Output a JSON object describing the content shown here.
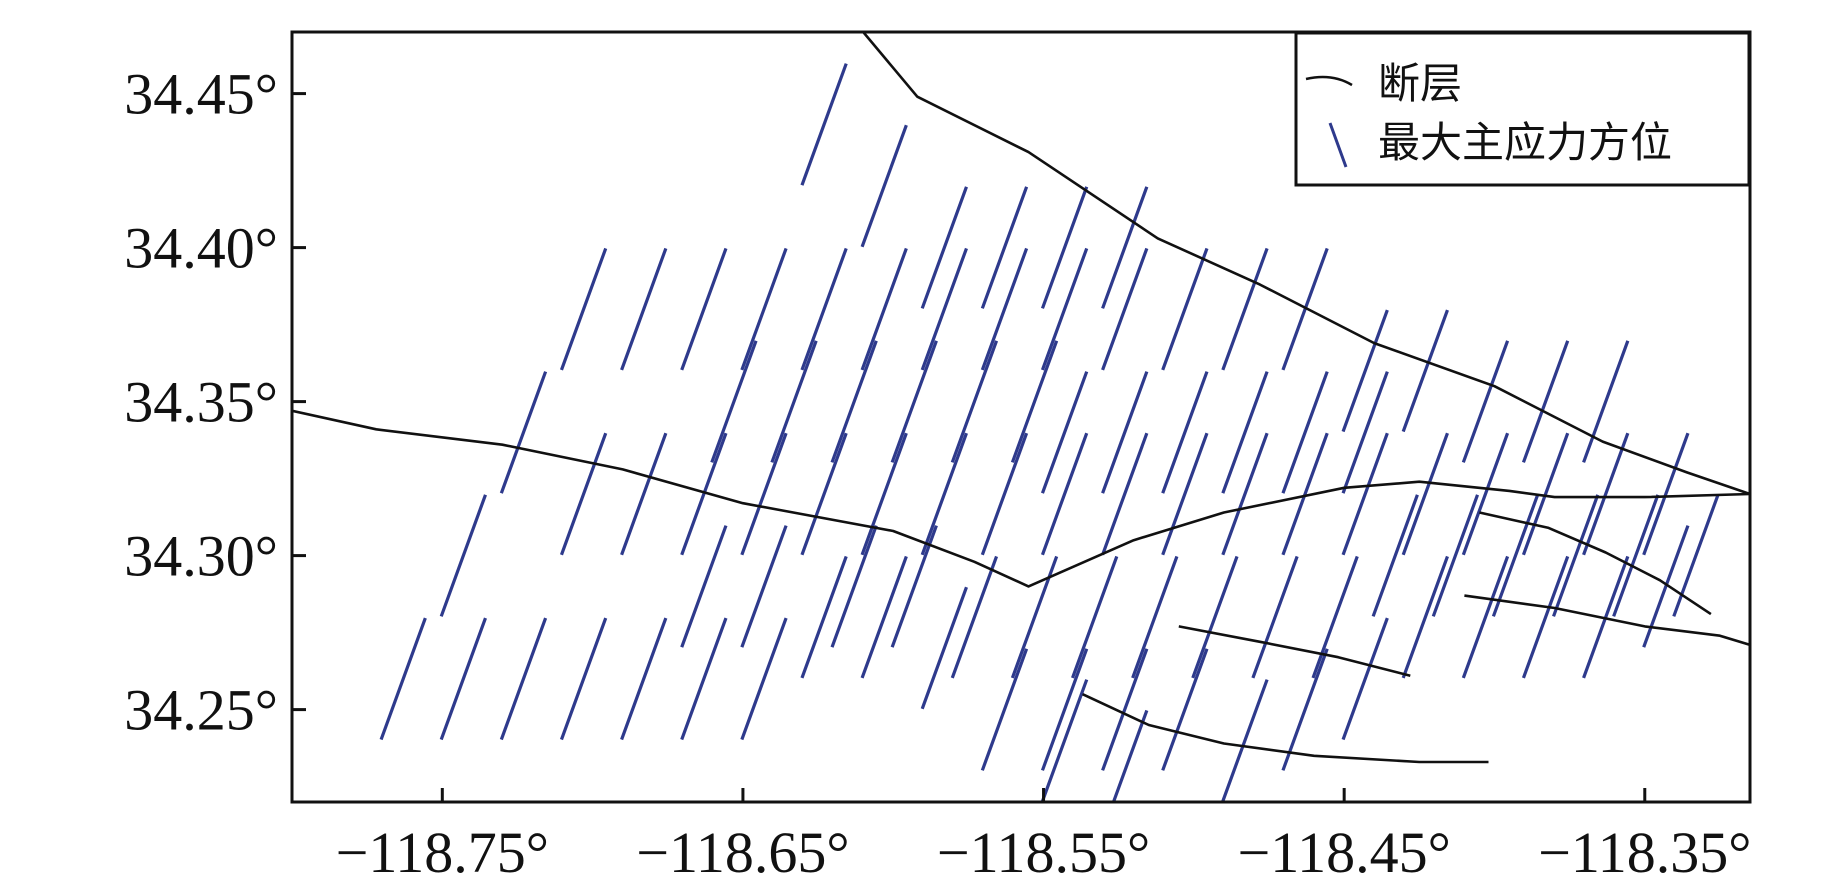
{
  "chart_data": {
    "type": "scatter",
    "title": "",
    "xlabel": "",
    "ylabel": "",
    "xlim": [
      -118.8,
      -118.315
    ],
    "ylim": [
      34.22,
      34.47
    ],
    "x_ticks": [
      -118.75,
      -118.65,
      -118.55,
      -118.45,
      -118.35
    ],
    "y_ticks": [
      34.25,
      34.3,
      34.35,
      34.4,
      34.45
    ],
    "x_tick_labels": [
      "−118.75°",
      "−118.65°",
      "−118.55°",
      "−118.45°",
      "−118.35°"
    ],
    "y_tick_labels": [
      "34.25°",
      "34.30°",
      "34.35°",
      "34.40°",
      "34.45°"
    ],
    "grid": false,
    "legend": {
      "placement": "top-right",
      "entries": [
        {
          "label": "断层",
          "symbol": "fault-line",
          "color": "#111111"
        },
        {
          "label": "最大主应力方位",
          "symbol": "stress-bar",
          "color": "#2e3a8c"
        }
      ]
    },
    "colors": {
      "fault": "#111111",
      "stress": "#2e3a8c"
    },
    "faults": [
      {
        "name": "",
        "points": [
          [
            -118.61,
            34.47
          ],
          [
            -118.592,
            34.449
          ],
          [
            -118.555,
            34.431
          ],
          [
            -118.512,
            34.403
          ],
          [
            -118.478,
            34.388
          ],
          [
            -118.44,
            34.369
          ],
          [
            -118.4,
            34.355
          ],
          [
            -118.364,
            34.337
          ],
          [
            -118.336,
            34.327
          ],
          [
            -118.315,
            34.32
          ]
        ]
      },
      {
        "name": "",
        "points": [
          [
            -118.8,
            34.347
          ],
          [
            -118.772,
            34.341
          ],
          [
            -118.73,
            34.336
          ],
          [
            -118.69,
            34.328
          ],
          [
            -118.65,
            34.317
          ],
          [
            -118.6,
            34.308
          ],
          [
            -118.573,
            34.298
          ],
          [
            -118.555,
            34.29
          ],
          [
            -118.52,
            34.305
          ],
          [
            -118.49,
            34.314
          ],
          [
            -118.45,
            34.322
          ],
          [
            -118.425,
            34.324
          ],
          [
            -118.395,
            34.321
          ],
          [
            -118.38,
            34.319
          ],
          [
            -118.35,
            34.319
          ],
          [
            -118.315,
            34.32
          ]
        ]
      },
      {
        "name": "",
        "points": [
          [
            -118.405,
            34.314
          ],
          [
            -118.382,
            34.309
          ],
          [
            -118.363,
            34.301
          ],
          [
            -118.345,
            34.292
          ],
          [
            -118.328,
            34.281
          ]
        ]
      },
      {
        "name": "",
        "points": [
          [
            -118.505,
            34.277
          ],
          [
            -118.478,
            34.272
          ],
          [
            -118.452,
            34.267
          ],
          [
            -118.428,
            34.261
          ]
        ]
      },
      {
        "name": "",
        "points": [
          [
            -118.41,
            34.287
          ],
          [
            -118.38,
            34.283
          ],
          [
            -118.35,
            34.277
          ],
          [
            -118.325,
            34.274
          ],
          [
            -118.315,
            34.271
          ]
        ]
      },
      {
        "name": "",
        "points": [
          [
            -118.537,
            34.255
          ],
          [
            -118.515,
            34.245
          ],
          [
            -118.49,
            34.239
          ],
          [
            -118.46,
            34.235
          ],
          [
            -118.425,
            34.233
          ],
          [
            -118.402,
            34.233
          ]
        ]
      }
    ],
    "stress_orientations": {
      "azimuth_deg": 20,
      "length_deg_lat": 0.042,
      "centers": [
        [
          -118.763,
          34.26
        ],
        [
          -118.743,
          34.26
        ],
        [
          -118.723,
          34.26
        ],
        [
          -118.703,
          34.26
        ],
        [
          -118.683,
          34.26
        ],
        [
          -118.663,
          34.26
        ],
        [
          -118.643,
          34.26
        ],
        [
          -118.623,
          34.28
        ],
        [
          -118.603,
          34.28
        ],
        [
          -118.583,
          34.27
        ],
        [
          -118.563,
          34.25
        ],
        [
          -118.543,
          34.25
        ],
        [
          -118.523,
          34.25
        ],
        [
          -118.503,
          34.25
        ],
        [
          -118.703,
          34.32
        ],
        [
          -118.683,
          34.32
        ],
        [
          -118.663,
          34.32
        ],
        [
          -118.643,
          34.32
        ],
        [
          -118.623,
          34.32
        ],
        [
          -118.603,
          34.32
        ],
        [
          -118.583,
          34.32
        ],
        [
          -118.563,
          34.32
        ],
        [
          -118.543,
          34.32
        ],
        [
          -118.523,
          34.32
        ],
        [
          -118.503,
          34.32
        ],
        [
          -118.483,
          34.32
        ],
        [
          -118.463,
          34.32
        ],
        [
          -118.443,
          34.32
        ],
        [
          -118.423,
          34.32
        ],
        [
          -118.403,
          34.32
        ],
        [
          -118.383,
          34.32
        ],
        [
          -118.363,
          34.32
        ],
        [
          -118.343,
          34.32
        ],
        [
          -118.703,
          34.38
        ],
        [
          -118.683,
          34.38
        ],
        [
          -118.663,
          34.38
        ],
        [
          -118.643,
          34.38
        ],
        [
          -118.623,
          34.38
        ],
        [
          -118.603,
          34.38
        ],
        [
          -118.583,
          34.38
        ],
        [
          -118.563,
          34.38
        ],
        [
          -118.543,
          34.38
        ],
        [
          -118.523,
          34.38
        ],
        [
          -118.503,
          34.38
        ],
        [
          -118.483,
          34.38
        ],
        [
          -118.463,
          34.38
        ],
        [
          -118.443,
          34.36
        ],
        [
          -118.423,
          34.36
        ],
        [
          -118.403,
          34.35
        ],
        [
          -118.383,
          34.35
        ],
        [
          -118.363,
          34.35
        ],
        [
          -118.623,
          34.44
        ],
        [
          -118.603,
          34.42
        ],
        [
          -118.583,
          34.4
        ],
        [
          -118.563,
          34.4
        ],
        [
          -118.543,
          34.4
        ],
        [
          -118.523,
          34.4
        ],
        [
          -118.613,
          34.29
        ],
        [
          -118.593,
          34.29
        ],
        [
          -118.573,
          34.28
        ],
        [
          -118.553,
          34.28
        ],
        [
          -118.533,
          34.28
        ],
        [
          -118.513,
          34.28
        ],
        [
          -118.493,
          34.28
        ],
        [
          -118.473,
          34.28
        ],
        [
          -118.453,
          34.28
        ],
        [
          -118.433,
          34.3
        ],
        [
          -118.413,
          34.3
        ],
        [
          -118.393,
          34.3
        ],
        [
          -118.373,
          34.3
        ],
        [
          -118.353,
          34.3
        ],
        [
          -118.333,
          34.3
        ],
        [
          -118.543,
          34.34
        ],
        [
          -118.523,
          34.34
        ],
        [
          -118.503,
          34.34
        ],
        [
          -118.483,
          34.34
        ],
        [
          -118.463,
          34.34
        ],
        [
          -118.443,
          34.34
        ],
        [
          -118.653,
          34.35
        ],
        [
          -118.633,
          34.35
        ],
        [
          -118.613,
          34.35
        ],
        [
          -118.593,
          34.35
        ],
        [
          -118.573,
          34.35
        ],
        [
          -118.553,
          34.35
        ],
        [
          -118.723,
          34.34
        ],
        [
          -118.743,
          34.3
        ],
        [
          -118.663,
          34.29
        ],
        [
          -118.643,
          34.29
        ],
        [
          -118.543,
          34.24
        ],
        [
          -118.523,
          34.23
        ],
        [
          -118.483,
          34.24
        ],
        [
          -118.463,
          34.25
        ],
        [
          -118.443,
          34.26
        ],
        [
          -118.423,
          34.28
        ],
        [
          -118.403,
          34.28
        ],
        [
          -118.383,
          34.28
        ],
        [
          -118.363,
          34.28
        ],
        [
          -118.343,
          34.29
        ]
      ]
    }
  }
}
